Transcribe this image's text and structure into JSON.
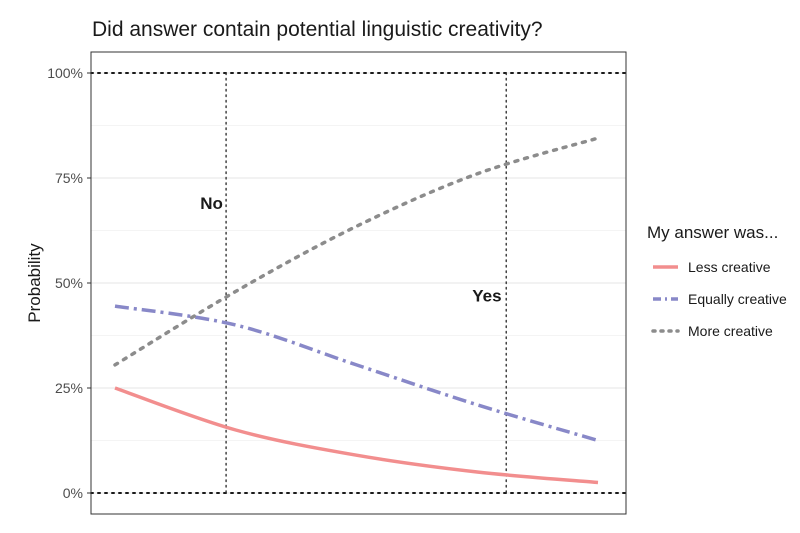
{
  "chart_data": {
    "type": "line",
    "title": "Did answer contain potential linguistic creativity?",
    "xlabel": "",
    "ylabel": "Probability",
    "x": [
      0,
      0.25,
      0.5,
      0.75,
      1
    ],
    "xlim": [
      0,
      1
    ],
    "ylim": [
      0,
      1
    ],
    "yticks": [
      0,
      0.25,
      0.5,
      0.75,
      1
    ],
    "ytick_labels": [
      "0%",
      "25%",
      "50%",
      "75%",
      "100%"
    ],
    "grid": true,
    "legend": {
      "title": "My answer was...",
      "placement": "right"
    },
    "reference_lines": {
      "horizontal": [
        0,
        1
      ],
      "vertical": [
        0.23,
        0.81
      ]
    },
    "annotations": [
      {
        "text": "No",
        "x": 0.2,
        "y": 0.69
      },
      {
        "text": "Yes",
        "x": 0.77,
        "y": 0.47
      }
    ],
    "series": [
      {
        "name": "Less creative",
        "color": "#f28e8e",
        "dash": "solid",
        "values": [
          0.25,
          0.15,
          0.09,
          0.05,
          0.025
        ]
      },
      {
        "name": "Equally creative",
        "color": "#8888c8",
        "dash": "dashdot",
        "values": [
          0.445,
          0.4,
          0.305,
          0.21,
          0.125
        ]
      },
      {
        "name": "More creative",
        "color": "#8c8c8c",
        "dash": "dotted",
        "values": [
          0.305,
          0.48,
          0.635,
          0.76,
          0.845
        ]
      }
    ]
  }
}
